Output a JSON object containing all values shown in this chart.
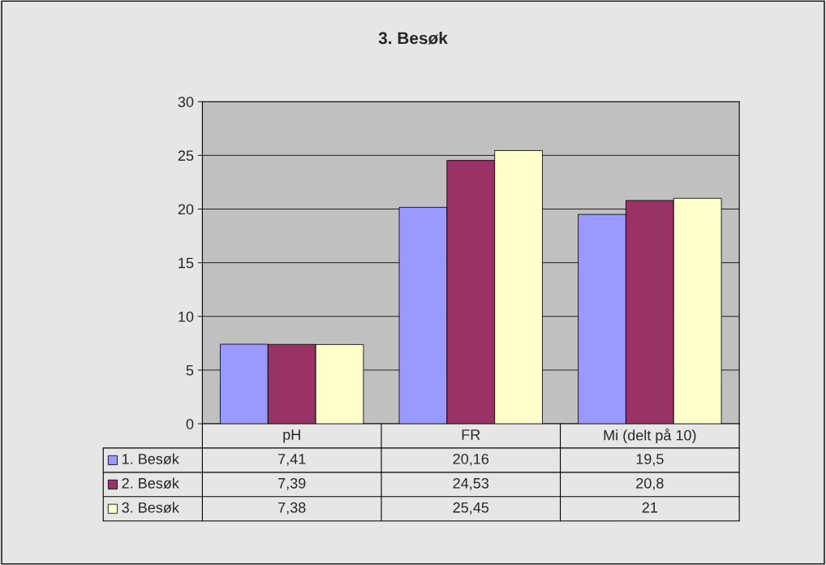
{
  "chart_data": {
    "type": "bar",
    "title": "3. Besøk",
    "categories": [
      "pH",
      "FR",
      "Mi (delt på 10)"
    ],
    "series": [
      {
        "name": "1. Besøk",
        "color": "#9999ff",
        "values": [
          7.41,
          20.16,
          19.5
        ],
        "value_labels": [
          "7,41",
          "20,16",
          "19,5"
        ]
      },
      {
        "name": "2. Besøk",
        "color": "#993366",
        "values": [
          7.39,
          24.53,
          20.8
        ],
        "value_labels": [
          "7,39",
          "24,53",
          "20,8"
        ]
      },
      {
        "name": "3. Besøk",
        "color": "#ffffcc",
        "values": [
          7.38,
          25.45,
          21
        ],
        "value_labels": [
          "7,38",
          "25,45",
          "21"
        ]
      }
    ],
    "ylim": [
      0,
      30
    ],
    "yticks": [
      0,
      5,
      10,
      15,
      20,
      25,
      30
    ],
    "grid": "y",
    "legend": "bottom"
  }
}
